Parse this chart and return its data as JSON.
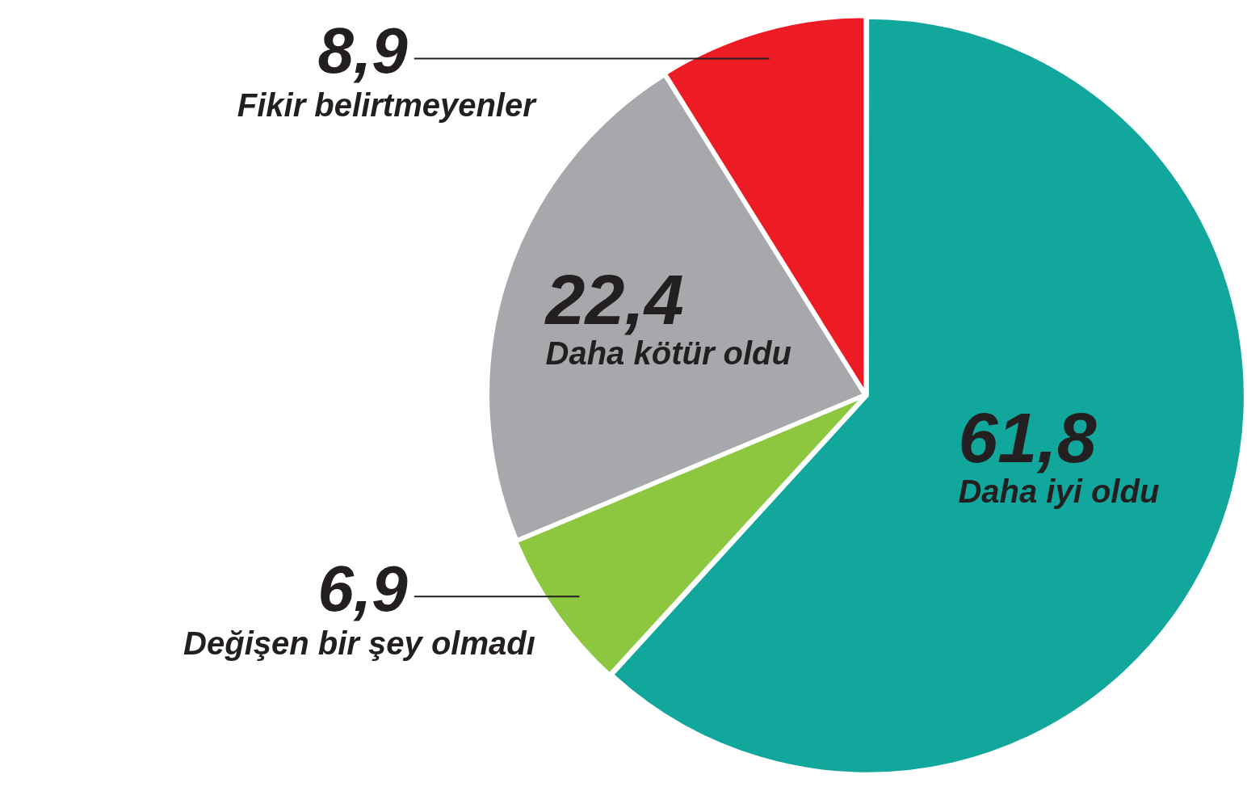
{
  "chart_data": {
    "type": "pie",
    "categories": [
      "Daha iyi oldu",
      "Değişen bir şey olmadı",
      "Daha kötür oldu",
      "Fikir belirtmeyenler"
    ],
    "values": [
      61.8,
      6.9,
      22.4,
      8.9
    ],
    "colors": [
      "#12a79d",
      "#8dc63f",
      "#a7a8ab",
      "#ed1c24"
    ],
    "value_labels": [
      "61,8",
      "6,9",
      "22,4",
      "8,9"
    ],
    "legend": false
  }
}
